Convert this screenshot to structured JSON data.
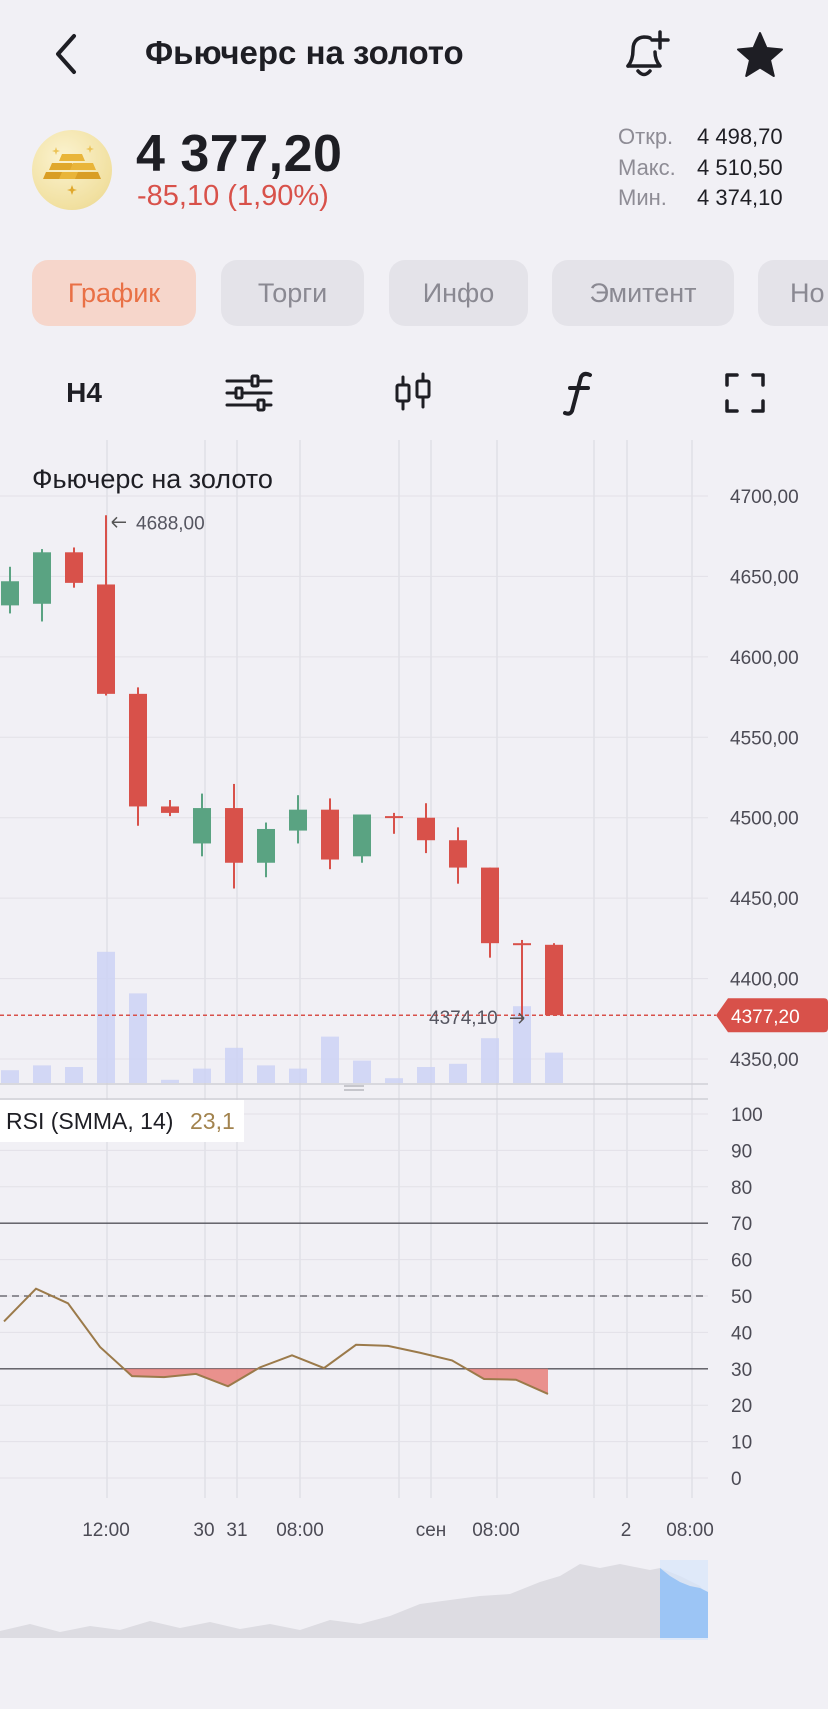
{
  "header": {
    "title": "Фьючерс на золото",
    "icons": {
      "back": "chevron-left-icon",
      "bell": "bell-plus-icon",
      "star": "star-icon"
    }
  },
  "quote": {
    "price": "4 377,20",
    "change": "-85,10 (1,90%)",
    "stats": [
      {
        "label": "Откр.",
        "value": "4 498,70"
      },
      {
        "label": "Макс.",
        "value": "4 510,50"
      },
      {
        "label": "Мин.",
        "value": "4 374,10"
      }
    ],
    "colors": {
      "negative": "#d8514a",
      "positive": "#5aa382"
    }
  },
  "tabs": [
    {
      "label": "График",
      "active": true
    },
    {
      "label": "Торги",
      "active": false
    },
    {
      "label": "Инфо",
      "active": false
    },
    {
      "label": "Эмитент",
      "active": false
    },
    {
      "label": "Но",
      "active": false
    }
  ],
  "toolbar": {
    "timeframe": "H4",
    "icons": [
      "indicators-settings-icon",
      "candles-type-icon",
      "function-icon",
      "fullscreen-icon"
    ]
  },
  "chart_data": [
    {
      "type": "candlestick",
      "title": "Фьючерс на золото",
      "y_ticks": [
        "4700,00",
        "4650,00",
        "4600,00",
        "4550,00",
        "4500,00",
        "4450,00",
        "4400,00",
        "4350,00"
      ],
      "ylim": [
        4343,
        4723
      ],
      "x_ticks": [
        "12:00",
        "30",
        "31",
        "08:00",
        "сен",
        "08:00",
        "2",
        "08:00"
      ],
      "current_price_label": "4377,20",
      "current_price": 4377.2,
      "max_annotation": "4688,00",
      "min_annotation": "4374,10",
      "candles": [
        {
          "o": 4632,
          "h": 4656,
          "l": 4627,
          "c": 4647
        },
        {
          "o": 4633,
          "h": 4667,
          "l": 4622,
          "c": 4665
        },
        {
          "o": 4665,
          "h": 4668,
          "l": 4643,
          "c": 4646
        },
        {
          "o": 4645,
          "h": 4688,
          "l": 4576,
          "c": 4577
        },
        {
          "o": 4577,
          "h": 4581,
          "l": 4495,
          "c": 4507
        },
        {
          "o": 4507,
          "h": 4511,
          "l": 4501,
          "c": 4503
        },
        {
          "o": 4484,
          "h": 4515,
          "l": 4476,
          "c": 4506
        },
        {
          "o": 4506,
          "h": 4521,
          "l": 4456,
          "c": 4472
        },
        {
          "o": 4472,
          "h": 4497,
          "l": 4463,
          "c": 4493
        },
        {
          "o": 4492,
          "h": 4514,
          "l": 4484,
          "c": 4505
        },
        {
          "o": 4505,
          "h": 4512,
          "l": 4468,
          "c": 4474
        },
        {
          "o": 4476,
          "h": 4502,
          "l": 4472,
          "c": 4502
        },
        {
          "o": 4501,
          "h": 4503,
          "l": 4490,
          "c": 4500
        },
        {
          "o": 4500,
          "h": 4509,
          "l": 4478,
          "c": 4486
        },
        {
          "o": 4486,
          "h": 4494,
          "l": 4459,
          "c": 4469
        },
        {
          "o": 4469,
          "h": 4469,
          "l": 4413,
          "c": 4422
        },
        {
          "o": 4422,
          "h": 4424,
          "l": 4374.1,
          "c": 4421
        },
        {
          "o": 4421,
          "h": 4422,
          "l": 4377,
          "c": 4377.2
        }
      ],
      "volumes": [
        8,
        11,
        10,
        82,
        56,
        2,
        9,
        22,
        11,
        9,
        29,
        14,
        3,
        10,
        12,
        28,
        48,
        19
      ]
    },
    {
      "type": "line",
      "title": "RSI (SMMA, 14)",
      "last_value": "23,1",
      "y_ticks": [
        "100",
        "90",
        "80",
        "70",
        "60",
        "50",
        "40",
        "30",
        "20",
        "10",
        "0"
      ],
      "ylim": [
        0,
        100
      ],
      "levels": [
        70,
        50,
        30
      ],
      "values": [
        43,
        52,
        48,
        36,
        28,
        27.7,
        28.6,
        25.2,
        30.4,
        33.7,
        30.2,
        36.6,
        36.3,
        34.4,
        32.3,
        27.2,
        27.0,
        23.1
      ]
    }
  ],
  "navigator": {
    "type": "area"
  }
}
